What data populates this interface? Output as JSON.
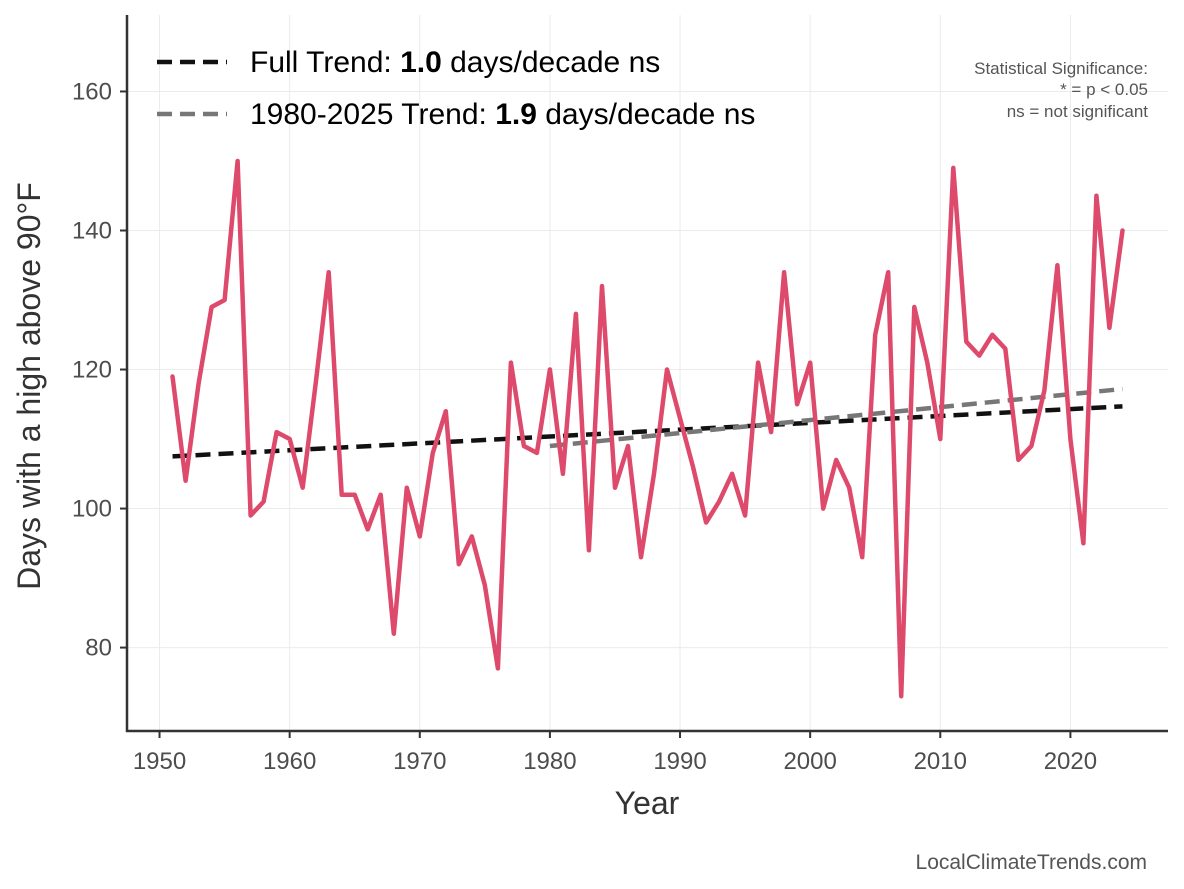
{
  "chart_data": {
    "type": "line",
    "title": "",
    "xlabel": "Year",
    "ylabel": "Days with a high above 90°F",
    "xlim": [
      1947.5,
      2027.5
    ],
    "ylim": [
      68,
      171
    ],
    "x_ticks": [
      1950,
      1960,
      1970,
      1980,
      1990,
      2000,
      2010,
      2020
    ],
    "y_ticks": [
      80,
      100,
      120,
      140,
      160
    ],
    "grid": true,
    "legend_position": "top-left",
    "series": [
      {
        "color": "#dd4a6b",
        "x": [
          1951,
          1952,
          1953,
          1954,
          1955,
          1956,
          1957,
          1958,
          1959,
          1960,
          1961,
          1962,
          1963,
          1964,
          1965,
          1966,
          1967,
          1968,
          1969,
          1970,
          1971,
          1972,
          1973,
          1974,
          1975,
          1976,
          1977,
          1978,
          1979,
          1980,
          1981,
          1982,
          1983,
          1984,
          1985,
          1986,
          1987,
          1988,
          1989,
          1990,
          1991,
          1992,
          1993,
          1994,
          1995,
          1996,
          1997,
          1998,
          1999,
          2000,
          2001,
          2002,
          2003,
          2004,
          2005,
          2006,
          2007,
          2008,
          2009,
          2010,
          2011,
          2012,
          2013,
          2014,
          2015,
          2016,
          2017,
          2018,
          2019,
          2020,
          2021,
          2022,
          2023,
          2024
        ],
        "values": [
          119,
          104,
          118,
          129,
          130,
          150,
          99,
          101,
          111,
          110,
          103,
          118,
          134,
          102,
          102,
          97,
          102,
          82,
          103,
          96,
          108,
          114,
          92,
          96,
          89,
          77,
          121,
          109,
          108,
          120,
          105,
          128,
          94,
          132,
          103,
          109,
          93,
          105,
          120,
          113,
          106,
          98,
          101,
          105,
          99,
          121,
          111,
          134,
          115,
          121,
          100,
          107,
          103,
          93,
          125,
          134,
          73,
          129,
          121,
          110,
          149,
          124,
          122,
          125,
          123,
          107,
          109,
          117,
          135,
          110,
          95,
          145,
          126,
          140
        ]
      }
    ],
    "trends": [
      {
        "label_prefix": "Full Trend: ",
        "label_value": "1.0",
        "label_suffix": " days/decade ns",
        "color": "#111111",
        "x": [
          1951,
          2024
        ],
        "values": [
          107.5,
          114.7
        ]
      },
      {
        "label_prefix": "1980-2025 Trend: ",
        "label_value": "1.9",
        "label_suffix": " days/decade ns",
        "color": "#777777",
        "x": [
          1980,
          2024
        ],
        "values": [
          109.0,
          117.2
        ]
      }
    ],
    "annotations": [
      "Statistical Significance:",
      "* = p < 0.05",
      "ns = not significant"
    ]
  },
  "source": "LocalClimateTrends.com"
}
